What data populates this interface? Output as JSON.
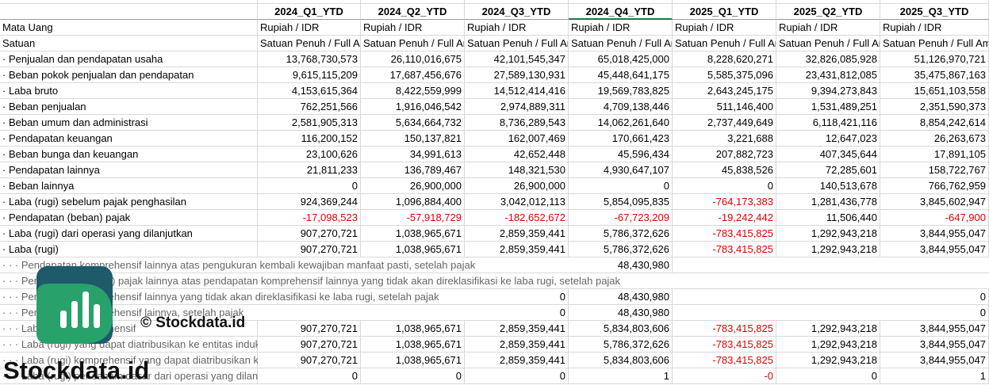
{
  "table": {
    "columns": [
      "2024_Q1_YTD",
      "2024_Q2_YTD",
      "2024_Q3_YTD",
      "2024_Q4_YTD",
      "2025_Q1_YTD",
      "2025_Q2_YTD",
      "2025_Q3_YTD"
    ],
    "rows": [
      {
        "label": "Mata Uang",
        "cells": [
          "Rupiah / IDR",
          "Rupiah / IDR",
          "Rupiah / IDR",
          "Rupiah / IDR",
          "Rupiah / IDR",
          "Rupiah / IDR",
          "Rupiah / IDR"
        ]
      },
      {
        "label": "Satuan",
        "cells": [
          "Satuan Penuh / Full Amount",
          "Satuan Penuh / Full Amount",
          "Satuan Penuh / Full Amount",
          "Satuan Penuh / Full Amount",
          "Satuan Penuh / Full Amount",
          "Satuan Penuh / Full Amount",
          "Satuan Penuh / Full Amount"
        ]
      },
      {
        "label": "· Penjualan dan pendapatan usaha",
        "cells": [
          "13,768,730,573",
          "26,110,016,675",
          "42,101,545,347",
          "65,018,425,000",
          "8,228,620,271",
          "32,826,085,928",
          "51,126,970,721"
        ]
      },
      {
        "label": "· Beban pokok penjualan dan pendapatan",
        "cells": [
          "9,615,115,209",
          "17,687,456,676",
          "27,589,130,931",
          "45,448,641,175",
          "5,585,375,096",
          "23,431,812,085",
          "35,475,867,163"
        ]
      },
      {
        "label": "· Laba bruto",
        "cells": [
          "4,153,615,364",
          "8,422,559,999",
          "14,512,414,416",
          "19,569,783,825",
          "2,643,245,175",
          "9,394,273,843",
          "15,651,103,558"
        ]
      },
      {
        "label": "· Beban penjualan",
        "cells": [
          "762,251,566",
          "1,916,046,542",
          "2,974,889,311",
          "4,709,138,446",
          "511,146,400",
          "1,531,489,251",
          "2,351,590,373"
        ]
      },
      {
        "label": "· Beban umum dan administrasi",
        "cells": [
          "2,581,905,313",
          "5,634,664,732",
          "8,736,289,543",
          "14,062,261,640",
          "2,737,449,649",
          "6,118,421,116",
          "8,854,242,614"
        ]
      },
      {
        "label": "· Pendapatan keuangan",
        "cells": [
          "116,200,152",
          "150,137,821",
          "162,007,469",
          "170,661,423",
          "3,221,688",
          "12,647,023",
          "26,263,673"
        ]
      },
      {
        "label": "· Beban bunga dan keuangan",
        "cells": [
          "23,100,626",
          "34,991,613",
          "42,652,448",
          "45,596,434",
          "207,882,723",
          "407,345,644",
          "17,891,105"
        ]
      },
      {
        "label": "· Pendapatan lainnya",
        "cells": [
          "21,811,233",
          "136,789,467",
          "148,321,530",
          "4,930,647,107",
          "45,838,526",
          "72,285,601",
          "158,722,767"
        ]
      },
      {
        "label": "· Beban lainnya",
        "cells": [
          "0",
          "26,900,000",
          "26,900,000",
          "0",
          "0",
          "140,513,678",
          "766,762,959"
        ]
      },
      {
        "label": "· Laba (rugi) sebelum pajak penghasilan",
        "cells": [
          "924,369,244",
          "1,096,884,400",
          "3,042,012,113",
          "5,854,095,835",
          "-764,173,383",
          "1,281,436,778",
          "3,845,602,947"
        ]
      },
      {
        "label": "· Pendapatan (beban) pajak",
        "cells": [
          "-17,098,523",
          "-57,918,729",
          "-182,652,672",
          "-67,723,209",
          "-19,242,442",
          "11,506,440",
          "-647,900"
        ]
      },
      {
        "label": "· Laba (rugi) dari operasi yang dilanjutkan",
        "cells": [
          "907,270,721",
          "1,038,965,671",
          "2,859,359,441",
          "5,786,372,626",
          "-783,415,825",
          "1,292,943,218",
          "3,844,955,047"
        ]
      },
      {
        "label": "· Laba (rugi)",
        "cells": [
          "907,270,721",
          "1,038,965,671",
          "2,859,359,441",
          "5,786,372,626",
          "-783,415,825",
          "1,292,943,218",
          "3,844,955,047"
        ]
      },
      {
        "label": "· · · Pendapatan komprehensif lainnya atas pengukuran kembali kewajiban manfaat pasti, setelah pajak",
        "cells": [
          null,
          null,
          null,
          "48,430,980",
          null,
          null,
          null
        ]
      },
      {
        "label": "· · · Pendapatan (beban) pajak lainnya atas pendapatan komprehensif lainnya yang tidak akan direklasifikasi ke laba rugi, setelah pajak",
        "cells": [
          null,
          null,
          null,
          null,
          null,
          null,
          null
        ]
      },
      {
        "label": "· · · Pendapatan komprehensif lainnya yang tidak akan direklasifikasi ke laba rugi, setelah pajak",
        "cells": [
          null,
          null,
          "0",
          "48,430,980",
          null,
          null,
          "0"
        ]
      },
      {
        "label": "· · · Pendapatan komprehensif lainnya, setelah pajak",
        "cells": [
          null,
          null,
          "0",
          "48,430,980",
          null,
          null,
          "0"
        ]
      },
      {
        "label": "· · · Laba (rugi) komprehensif",
        "cells": [
          "907,270,721",
          "1,038,965,671",
          "2,859,359,441",
          "5,834,803,606",
          "-783,415,825",
          "1,292,943,218",
          "3,844,955,047"
        ]
      },
      {
        "label": "· · · Laba (rugi) yang dapat diatribusikan ke entitas induk",
        "cells": [
          "907,270,721",
          "1,038,965,671",
          "2,859,359,441",
          "5,786,372,626",
          "-783,415,825",
          "1,292,943,218",
          "3,844,955,047"
        ]
      },
      {
        "label": "· · · Laba (rugi) komprehensif yang dapat diatribusikan ke entitas induk",
        "cells": [
          "907,270,721",
          "1,038,965,671",
          "2,859,359,441",
          "5,834,803,606",
          "-783,415,825",
          "1,292,943,218",
          "3,844,955,047"
        ]
      },
      {
        "label": "· · · Laba (rugi) per saham dasar dari operasi yang dilanjutkan",
        "cells": [
          "0",
          "0",
          "0",
          "1",
          "-0",
          "0",
          "1"
        ]
      }
    ]
  },
  "watermark": {
    "caption": "© Stockdata.id",
    "brand": "Stockdata.id"
  }
}
